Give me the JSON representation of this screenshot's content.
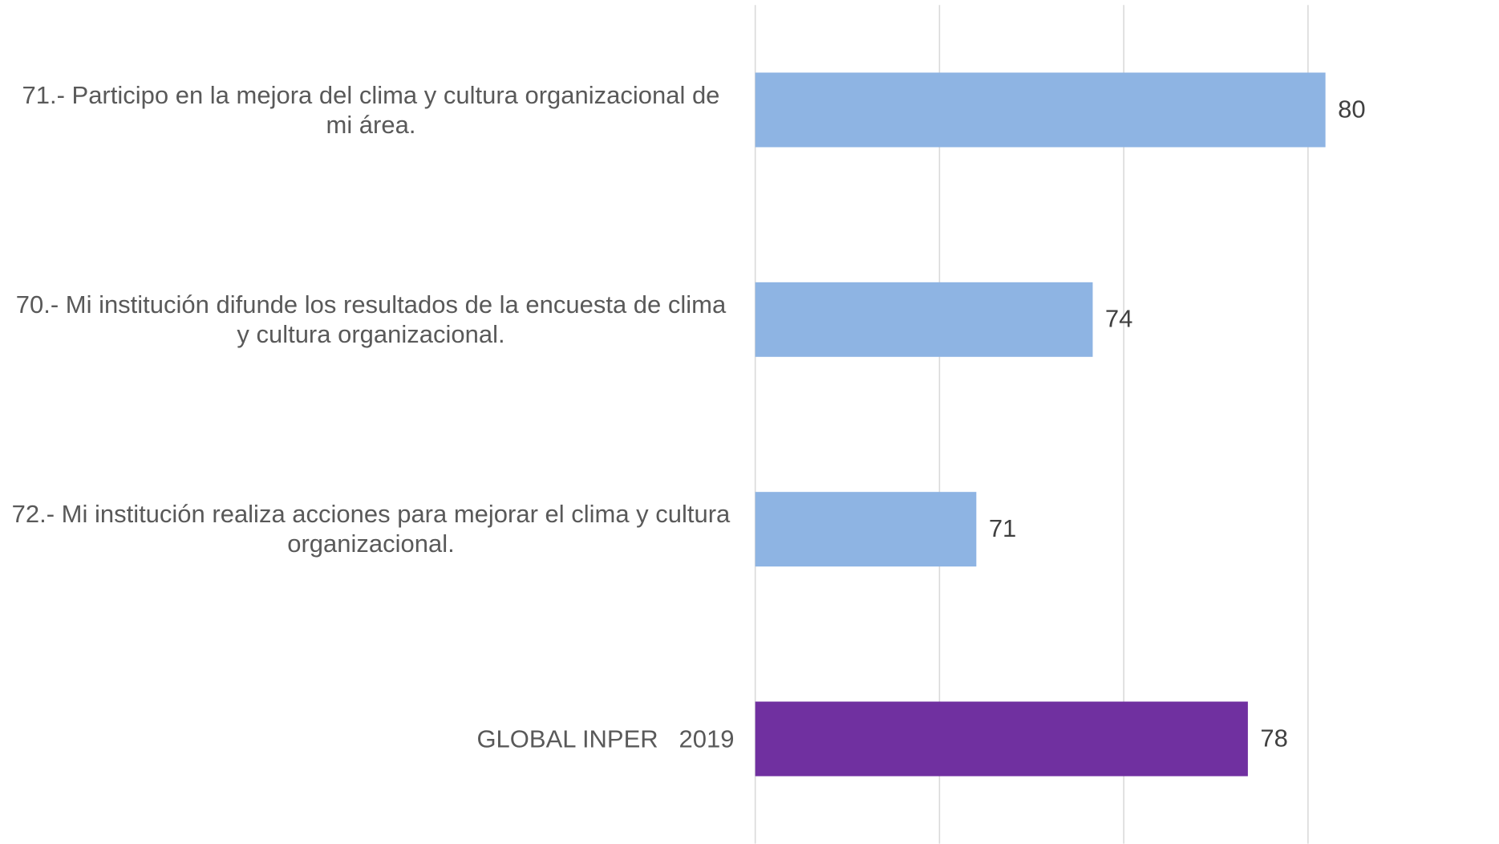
{
  "chart_data": {
    "type": "bar",
    "orientation": "horizontal",
    "categories": [
      "71.- Participo en la mejora del clima y cultura organizacional de mi área.",
      "70.- Mi institución difunde los resultados de la encuesta de clima y cultura organizacional.",
      "72.- Mi institución realiza acciones para mejorar el clima y cultura organizacional.",
      "GLOBAL INPER   2019"
    ],
    "values": [
      80,
      74,
      71,
      78
    ],
    "colors": [
      "#8eb4e3",
      "#8eb4e3",
      "#8eb4e3",
      "#7030a0"
    ],
    "xlim": [
      65.3,
      84.4
    ],
    "xticks": [
      65.3,
      70.05,
      74.8,
      79.55
    ],
    "grid": true
  }
}
